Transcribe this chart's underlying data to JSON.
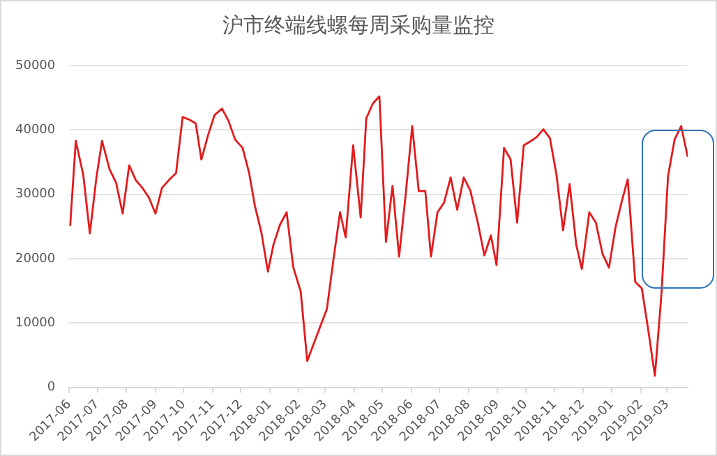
{
  "chart_data": {
    "type": "line",
    "title": "沪市终端线螺每周采购量监控",
    "x": [
      "2017-06-02",
      "2017-06-08",
      "2017-06-16",
      "2017-06-23",
      "2017-06-30",
      "2017-07-06",
      "2017-07-14",
      "2017-07-21",
      "2017-07-28",
      "2017-08-04",
      "2017-08-11",
      "2017-08-18",
      "2017-08-25",
      "2017-09-01",
      "2017-09-08",
      "2017-09-16",
      "2017-09-23",
      "2017-09-30",
      "2017-10-07",
      "2017-10-14",
      "2017-10-20",
      "2017-10-27",
      "2017-11-03",
      "2017-11-11",
      "2017-11-18",
      "2017-11-25",
      "2017-12-03",
      "2017-12-10",
      "2017-12-16",
      "2017-12-23",
      "2017-12-30",
      "2018-01-05",
      "2018-01-12",
      "2018-01-19",
      "2018-01-26",
      "2018-02-03",
      "2018-02-10",
      "2018-02-17",
      "2018-02-24",
      "2018-03-03",
      "2018-03-10",
      "2018-03-17",
      "2018-03-23",
      "2018-03-31",
      "2018-04-08",
      "2018-04-14",
      "2018-04-21",
      "2018-04-28",
      "2018-05-05",
      "2018-05-12",
      "2018-05-19",
      "2018-05-26",
      "2018-06-02",
      "2018-06-09",
      "2018-06-16",
      "2018-06-22",
      "2018-06-29",
      "2018-07-06",
      "2018-07-13",
      "2018-07-20",
      "2018-07-27",
      "2018-08-03",
      "2018-08-11",
      "2018-08-18",
      "2018-08-25",
      "2018-08-31",
      "2018-09-08",
      "2018-09-15",
      "2018-09-22",
      "2018-09-29",
      "2018-10-07",
      "2018-10-13",
      "2018-10-20",
      "2018-10-27",
      "2018-11-03",
      "2018-11-10",
      "2018-11-17",
      "2018-11-24",
      "2018-11-30",
      "2018-12-08",
      "2018-12-15",
      "2018-12-22",
      "2018-12-29",
      "2019-01-05",
      "2019-01-12",
      "2019-01-18",
      "2019-01-26",
      "2019-02-02",
      "2019-02-09",
      "2019-02-16",
      "2019-02-23",
      "2019-03-02",
      "2019-03-09",
      "2019-03-16",
      "2019-03-23"
    ],
    "series": [
      {
        "color": "#e31a1c",
        "values": [
          25100,
          38300,
          33000,
          23900,
          32600,
          38300,
          33900,
          31800,
          27000,
          34500,
          32200,
          31000,
          29500,
          27000,
          31000,
          32300,
          33300,
          42000,
          41600,
          41000,
          35400,
          39100,
          42300,
          43300,
          41400,
          38500,
          37200,
          33300,
          28300,
          24100,
          18000,
          22200,
          25300,
          27200,
          18700,
          14900,
          4100,
          6800,
          9500,
          12200,
          19900,
          27200,
          23300,
          37600,
          26400,
          41800,
          44100,
          45200,
          22600,
          31300,
          20300,
          29900,
          40600,
          30500,
          30500,
          20300,
          27200,
          28700,
          32600,
          27600,
          32600,
          30600,
          25600,
          20500,
          23600,
          19000,
          37200,
          35400,
          25600,
          37600,
          38300,
          38900,
          40100,
          38700,
          33000,
          24400,
          31600,
          22200,
          18400,
          27200,
          25600,
          20800,
          18600,
          24900,
          29100,
          32300,
          16400,
          15400,
          8800,
          1800,
          14500,
          32800,
          38500,
          40600,
          35800
        ]
      }
    ],
    "xlim": [
      "2017-06-01",
      "2019-03-23"
    ],
    "xticks": [
      {
        "value": "2017-06",
        "label": "2017-06"
      },
      {
        "value": "2017-07",
        "label": "2017-07"
      },
      {
        "value": "2017-08",
        "label": "2017-08"
      },
      {
        "value": "2017-09",
        "label": "2017-09"
      },
      {
        "value": "2017-10",
        "label": "2017-10"
      },
      {
        "value": "2017-11",
        "label": "2017-11"
      },
      {
        "value": "2017-12",
        "label": "2017-12"
      },
      {
        "value": "2018-01",
        "label": "2018-01"
      },
      {
        "value": "2018-02",
        "label": "2018-02"
      },
      {
        "value": "2018-03",
        "label": "2018-03"
      },
      {
        "value": "2018-04",
        "label": "2018-04"
      },
      {
        "value": "2018-05",
        "label": "2018-05"
      },
      {
        "value": "2018-06",
        "label": "2018-06"
      },
      {
        "value": "2018-07",
        "label": "2018-07"
      },
      {
        "value": "2018-08",
        "label": "2018-08"
      },
      {
        "value": "2018-09",
        "label": "2018-09"
      },
      {
        "value": "2018-10",
        "label": "2018-10"
      },
      {
        "value": "2018-11",
        "label": "2018-11"
      },
      {
        "value": "2018-12",
        "label": "2018-12"
      },
      {
        "value": "2019-01",
        "label": "2019-01"
      },
      {
        "value": "2019-02",
        "label": "2019-02"
      },
      {
        "value": "2019-03",
        "label": "2019-03"
      }
    ],
    "ylim": [
      0,
      50000
    ],
    "yticks": [
      0,
      10000,
      20000,
      30000,
      40000,
      50000
    ],
    "grid": "y",
    "legend": false,
    "marker": "none",
    "line_style": "solid"
  }
}
